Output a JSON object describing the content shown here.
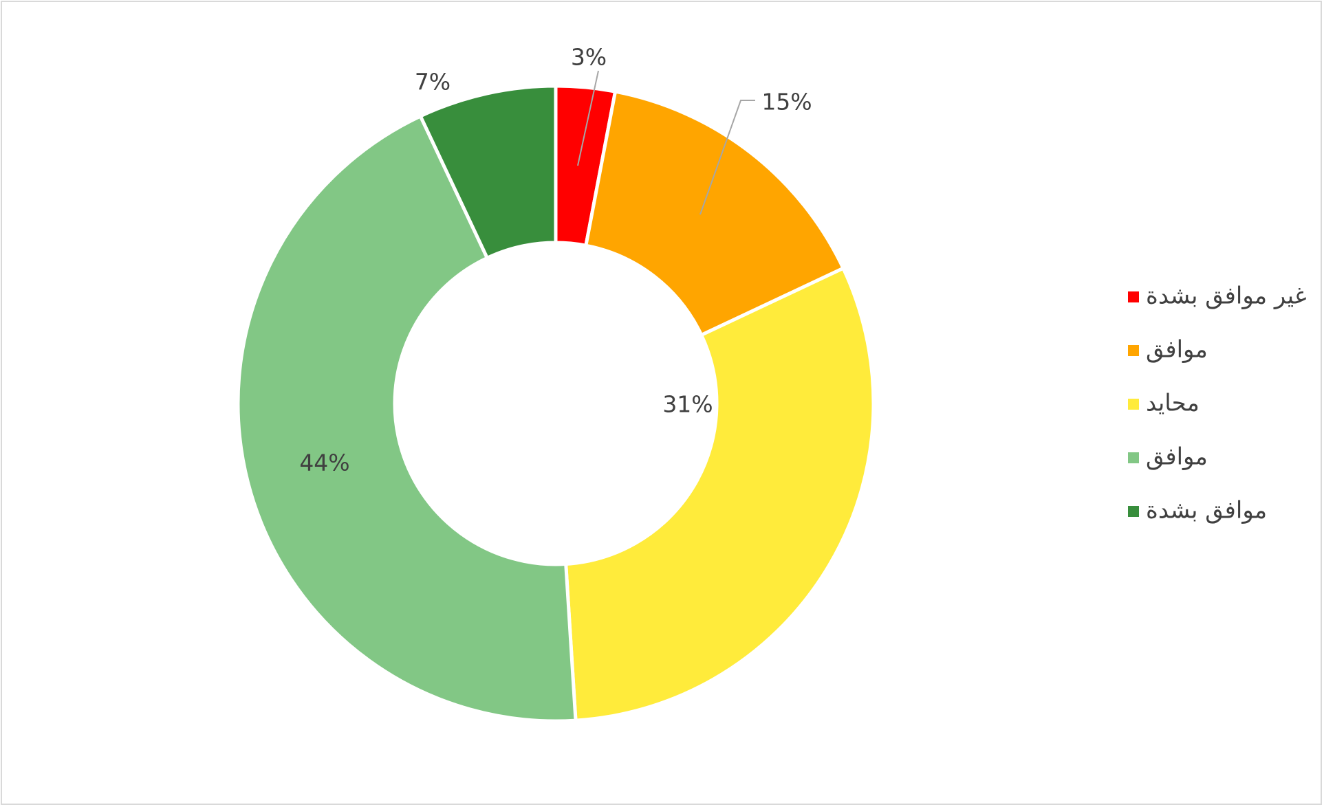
{
  "chart_data": {
    "type": "pie",
    "variant": "doughnut",
    "categories": [
      "غير موافق بشدة",
      "موافق",
      "محايد",
      "موافق",
      "موافق بشدة"
    ],
    "values": [
      3,
      15,
      31,
      44,
      7
    ],
    "labels": [
      "3%",
      "15%",
      "31%",
      "44%",
      "7%"
    ],
    "colors": [
      "#ff0000",
      "#ffa500",
      "#ffeb3b",
      "#82c785",
      "#388e3c"
    ],
    "legend_position": "right",
    "title": ""
  }
}
